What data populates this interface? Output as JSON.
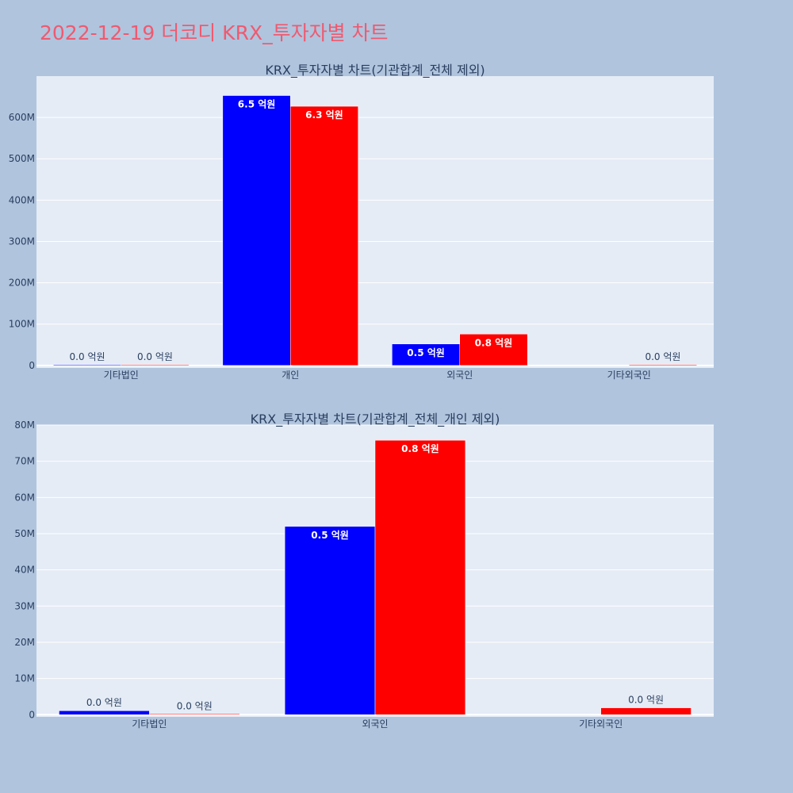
{
  "page": {
    "title": "2022-12-19 더코디 KRX_투자자별 차트"
  },
  "colors": {
    "background": "#b0c4de",
    "plot_background": "#e5ecf6",
    "title": "#ef5a6f",
    "text": "#2a3f5f",
    "grid": "#ffffff",
    "series_a": "#0000ff",
    "series_b": "#ff0000"
  },
  "chart_data": [
    {
      "type": "bar",
      "title": "KRX_투자자별 차트(기관합계_전체 제외)",
      "xlabel": "",
      "ylabel": "",
      "categories": [
        "기타법인",
        "개인",
        "외국인",
        "기타외국인"
      ],
      "ylim": [
        -6000000,
        700000000
      ],
      "yticks": [
        0,
        100000000,
        200000000,
        300000000,
        400000000,
        500000000,
        600000000
      ],
      "ytick_labels": [
        "0",
        "100M",
        "200M",
        "300M",
        "400M",
        "500M",
        "600M"
      ],
      "grid": true,
      "legend": "none",
      "series": [
        {
          "color": "#0000ff",
          "values": [
            1000000,
            653000000,
            52000000,
            null
          ],
          "labels": [
            "0.0 억원",
            "6.5 억원",
            "0.5 억원",
            ""
          ]
        },
        {
          "color": "#ff0000",
          "values": [
            500000,
            627000000,
            76000000,
            2000000
          ],
          "labels": [
            "0.0 억원",
            "6.3 억원",
            "0.8 억원",
            "0.0 억원"
          ]
        }
      ]
    },
    {
      "type": "bar",
      "title": "KRX_투자자별 차트(기관합계_전체_개인 제외)",
      "xlabel": "",
      "ylabel": "",
      "categories": [
        "기타법인",
        "외국인",
        "기타외국인"
      ],
      "ylim": [
        -600000,
        80000000
      ],
      "yticks": [
        0,
        10000000,
        20000000,
        30000000,
        40000000,
        50000000,
        60000000,
        70000000,
        80000000
      ],
      "ytick_labels": [
        "0",
        "10M",
        "20M",
        "30M",
        "40M",
        "50M",
        "60M",
        "70M",
        "80M"
      ],
      "grid": true,
      "legend": "none",
      "series": [
        {
          "color": "#0000ff",
          "values": [
            1100000,
            52000000,
            null
          ],
          "labels": [
            "0.0 억원",
            "0.5 억원",
            ""
          ]
        },
        {
          "color": "#ff0000",
          "values": [
            200000,
            75800000,
            1900000
          ],
          "labels": [
            "0.0 억원",
            "0.8 억원",
            "0.0 억원"
          ]
        }
      ]
    }
  ]
}
